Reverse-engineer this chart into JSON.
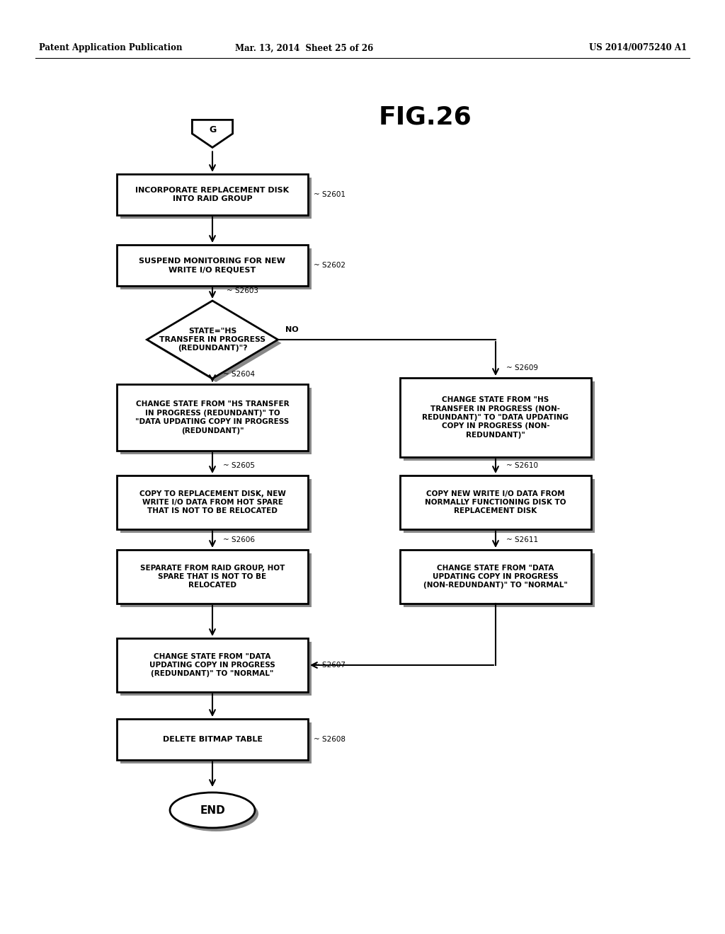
{
  "header_left": "Patent Application Publication",
  "header_mid": "Mar. 13, 2014  Sheet 25 of 26",
  "header_right": "US 2014/0075240 A1",
  "title": "FIG.26",
  "bg_color": "#ffffff",
  "lw": 2.0,
  "shadow_color": "#888888",
  "boxes": {
    "S2601": {
      "text": "INCORPORATE REPLACEMENT DISK\nINTO RAID GROUP",
      "label": "S2601"
    },
    "S2602": {
      "text": "SUSPEND MONITORING FOR NEW\nWRITE I/O REQUEST",
      "label": "S2602"
    },
    "S2603": {
      "text": "STATE=\"HS\nTRANSFER IN PROGRESS\n(REDUNDANT)\"?",
      "label": "S2603",
      "type": "diamond"
    },
    "S2604": {
      "text": "CHANGE STATE FROM \"HS TRANSFER\nIN PROGRESS (REDUNDANT)\" TO\n\"DATA UPDATING COPY IN PROGRESS\n(REDUNDANT)\"",
      "label": "S2604"
    },
    "S2605": {
      "text": "COPY TO REPLACEMENT DISK, NEW\nWRITE I/O DATA FROM HOT SPARE\nTHAT IS NOT TO BE RELOCATED",
      "label": "S2605"
    },
    "S2606": {
      "text": "SEPARATE FROM RAID GROUP, HOT\nSPARE THAT IS NOT TO BE\nRELOCATED",
      "label": "S2606"
    },
    "S2607": {
      "text": "CHANGE STATE FROM \"DATA\nUPDATING COPY IN PROGRESS\n(REDUNDANT)\" TO \"NORMAL\"",
      "label": "S2607"
    },
    "S2608": {
      "text": "DELETE BITMAP TABLE",
      "label": "S2608"
    },
    "S2609": {
      "text": "CHANGE STATE FROM \"HS\nTRANSFER IN PROGRESS (NON-\nREDUNDANT)\" TO \"DATA UPDATING\nCOPY IN PROGRESS (NON-\nREDUNDANT)\"",
      "label": "S2609"
    },
    "S2610": {
      "text": "COPY NEW WRITE I/O DATA FROM\nNORMALLY FUNCTIONING DISK TO\nREPLACEMENT DISK",
      "label": "S2610"
    },
    "S2611": {
      "text": "CHANGE STATE FROM \"DATA\nUPDATING COPY IN PROGRESS\n(NON-REDUNDANT)\" TO \"NORMAL\"",
      "label": "S2611"
    }
  }
}
